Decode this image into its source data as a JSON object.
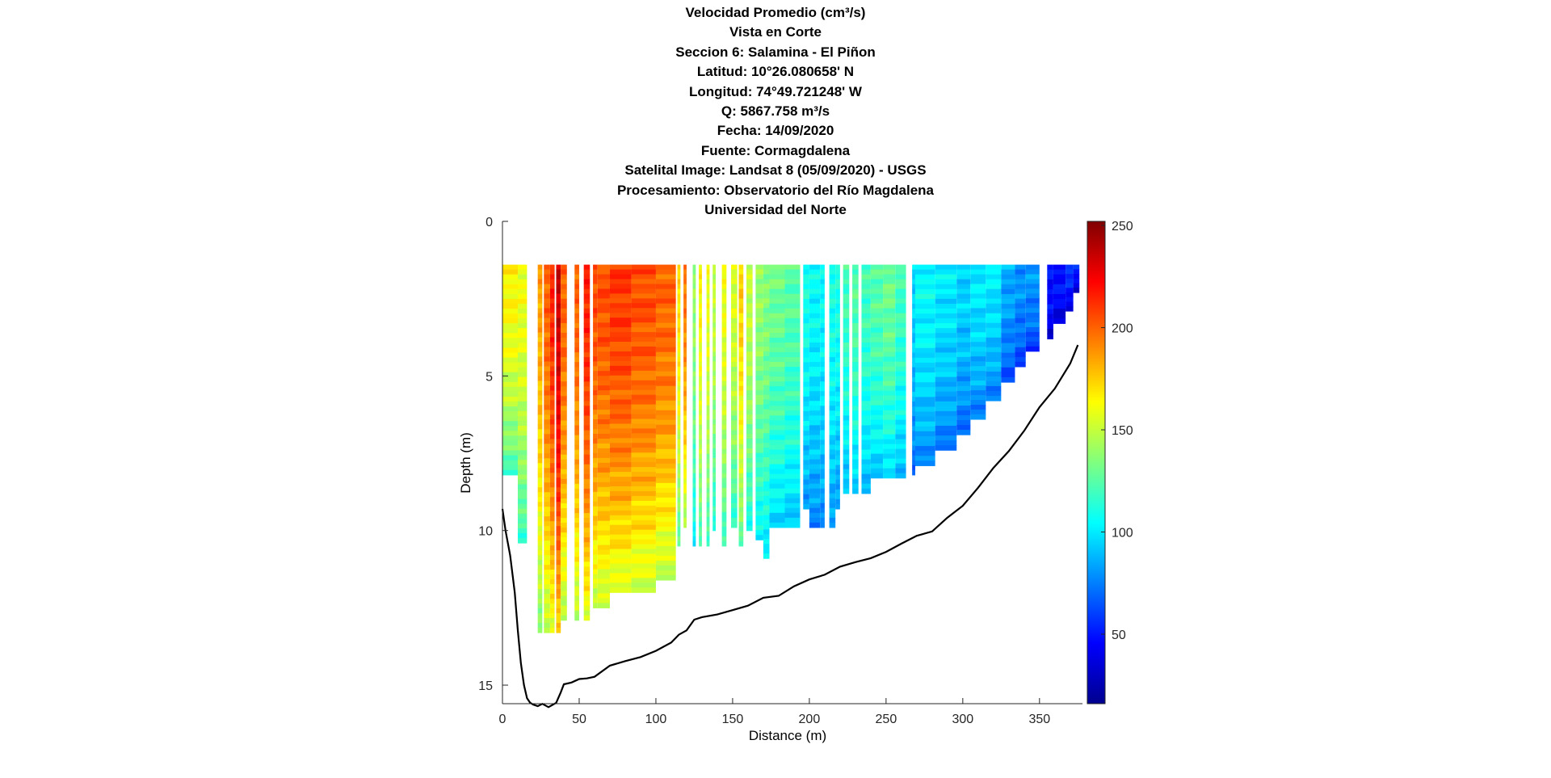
{
  "chart_data": {
    "type": "heatmap",
    "title_lines": [
      "Velocidad Promedio (cm³/s)",
      "Vista en Corte",
      "Seccion 6: Salamina - El Piñon",
      "Latitud: 10°26.080658' N",
      "Longitud: 74°49.721248' W",
      "Q: 5867.758 m³/s",
      "Fecha: 14/09/2020",
      "Fuente: Cormagdalena",
      "Satelital Image: Landsat 8 (05/09/2020) - USGS",
      "Procesamiento: Observatorio del Río Magdalena",
      "Universidad del Norte"
    ],
    "xlabel": "Distance (m)",
    "ylabel": "Depth (m)",
    "xlim": [
      0,
      378
    ],
    "ylim": [
      0,
      15.6
    ],
    "y_reversed": true,
    "x_ticks": [
      "0",
      "50",
      "100",
      "150",
      "200",
      "250",
      "300",
      "350"
    ],
    "y_ticks": [
      "0",
      "5",
      "10",
      "15"
    ],
    "colorbar": {
      "range": [
        16,
        252
      ],
      "ticks": [
        "50",
        "100",
        "150",
        "200",
        "250"
      ],
      "colormap": "jet"
    },
    "velocity_top_depth": 1.4,
    "velocity_columns": [
      {
        "x0": 0,
        "x1": 10,
        "depth": 8.2,
        "v": 165
      },
      {
        "x0": 10,
        "x1": 16,
        "depth": 10.4,
        "v": 160
      },
      {
        "x0": 23,
        "x1": 26,
        "depth": 13.3,
        "v": 185
      },
      {
        "x0": 27,
        "x1": 31,
        "depth": 13.3,
        "v": 200
      },
      {
        "x0": 31,
        "x1": 34,
        "depth": 13.3,
        "v": 215
      },
      {
        "x0": 35,
        "x1": 38,
        "depth": 13.3,
        "v": 235
      },
      {
        "x0": 38,
        "x1": 42,
        "depth": 12.9,
        "v": 200
      },
      {
        "x0": 47,
        "x1": 50,
        "depth": 12.9,
        "v": 200
      },
      {
        "x0": 53,
        "x1": 57,
        "depth": 12.9,
        "v": 215
      },
      {
        "x0": 59,
        "x1": 62,
        "depth": 12.5,
        "v": 205
      },
      {
        "x0": 62,
        "x1": 70,
        "depth": 12.5,
        "v": 205
      },
      {
        "x0": 70,
        "x1": 84,
        "depth": 12.0,
        "v": 210
      },
      {
        "x0": 84,
        "x1": 100,
        "depth": 12.0,
        "v": 205
      },
      {
        "x0": 100,
        "x1": 113,
        "depth": 11.6,
        "v": 200
      },
      {
        "x0": 114,
        "x1": 116,
        "depth": 10.5,
        "v": 170
      },
      {
        "x0": 118,
        "x1": 120,
        "depth": 9.9,
        "v": 195
      },
      {
        "x0": 124,
        "x1": 126,
        "depth": 10.5,
        "v": 140
      },
      {
        "x0": 128,
        "x1": 130,
        "depth": 10.5,
        "v": 165
      },
      {
        "x0": 133,
        "x1": 135,
        "depth": 10.5,
        "v": 160
      },
      {
        "x0": 137,
        "x1": 139,
        "depth": 10.0,
        "v": 150
      },
      {
        "x0": 143,
        "x1": 146,
        "depth": 10.5,
        "v": 160
      },
      {
        "x0": 149,
        "x1": 153,
        "depth": 9.9,
        "v": 155
      },
      {
        "x0": 154,
        "x1": 157,
        "depth": 10.5,
        "v": 175
      },
      {
        "x0": 159,
        "x1": 163,
        "depth": 10.0,
        "v": 150
      },
      {
        "x0": 165,
        "x1": 170,
        "depth": 10.3,
        "v": 140
      },
      {
        "x0": 170,
        "x1": 174,
        "depth": 10.9,
        "v": 135
      },
      {
        "x0": 174,
        "x1": 184,
        "depth": 9.9,
        "v": 130
      },
      {
        "x0": 184,
        "x1": 194,
        "depth": 9.9,
        "v": 125
      },
      {
        "x0": 196,
        "x1": 200,
        "depth": 9.3,
        "v": 110
      },
      {
        "x0": 200,
        "x1": 207,
        "depth": 9.9,
        "v": 105
      },
      {
        "x0": 207,
        "x1": 210,
        "depth": 9.9,
        "v": 105
      },
      {
        "x0": 213,
        "x1": 217,
        "depth": 9.9,
        "v": 110
      },
      {
        "x0": 217,
        "x1": 220,
        "depth": 9.3,
        "v": 110
      },
      {
        "x0": 222,
        "x1": 226,
        "depth": 8.8,
        "v": 120
      },
      {
        "x0": 228,
        "x1": 232,
        "depth": 8.8,
        "v": 125
      },
      {
        "x0": 234,
        "x1": 240,
        "depth": 8.8,
        "v": 120
      },
      {
        "x0": 240,
        "x1": 248,
        "depth": 8.3,
        "v": 125
      },
      {
        "x0": 248,
        "x1": 256,
        "depth": 8.3,
        "v": 130
      },
      {
        "x0": 256,
        "x1": 263,
        "depth": 8.3,
        "v": 120
      },
      {
        "x0": 267,
        "x1": 269,
        "depth": 8.2,
        "v": 95
      },
      {
        "x0": 269,
        "x1": 282,
        "depth": 7.9,
        "v": 105
      },
      {
        "x0": 282,
        "x1": 296,
        "depth": 7.4,
        "v": 100
      },
      {
        "x0": 296,
        "x1": 305,
        "depth": 6.9,
        "v": 95
      },
      {
        "x0": 305,
        "x1": 315,
        "depth": 6.4,
        "v": 100
      },
      {
        "x0": 315,
        "x1": 325,
        "depth": 5.8,
        "v": 100
      },
      {
        "x0": 325,
        "x1": 334,
        "depth": 5.2,
        "v": 85
      },
      {
        "x0": 334,
        "x1": 341,
        "depth": 4.7,
        "v": 80
      },
      {
        "x0": 341,
        "x1": 350,
        "depth": 4.2,
        "v": 80
      },
      {
        "x0": 355,
        "x1": 359,
        "depth": 3.8,
        "v": 50
      },
      {
        "x0": 359,
        "x1": 367,
        "depth": 3.3,
        "v": 50
      },
      {
        "x0": 367,
        "x1": 372,
        "depth": 2.9,
        "v": 55
      },
      {
        "x0": 372,
        "x1": 376,
        "depth": 2.3,
        "v": 50
      }
    ],
    "bed_profile": {
      "x": [
        0,
        2,
        5,
        8,
        10,
        12,
        14,
        16,
        18,
        20,
        23,
        26,
        30,
        35,
        38,
        40,
        45,
        50,
        55,
        60,
        70,
        80,
        90,
        100,
        110,
        115,
        120,
        125,
        130,
        140,
        150,
        160,
        170,
        180,
        190,
        200,
        210,
        220,
        230,
        240,
        250,
        260,
        270,
        280,
        290,
        300,
        310,
        320,
        330,
        340,
        350,
        360,
        370,
        375
      ],
      "depth": [
        9.3,
        10.0,
        10.8,
        12.0,
        13.2,
        14.3,
        15.0,
        15.4,
        15.6,
        15.6,
        15.7,
        15.6,
        15.7,
        15.6,
        15.2,
        15.0,
        14.9,
        14.8,
        14.8,
        14.7,
        14.4,
        14.2,
        14.1,
        13.9,
        13.6,
        13.4,
        13.2,
        12.9,
        12.8,
        12.7,
        12.6,
        12.4,
        12.2,
        12.1,
        11.8,
        11.6,
        11.4,
        11.2,
        11.0,
        10.9,
        10.7,
        10.4,
        10.2,
        10.0,
        9.6,
        9.2,
        8.6,
        8.0,
        7.4,
        6.8,
        6.0,
        5.4,
        4.6,
        4.0
      ]
    }
  }
}
